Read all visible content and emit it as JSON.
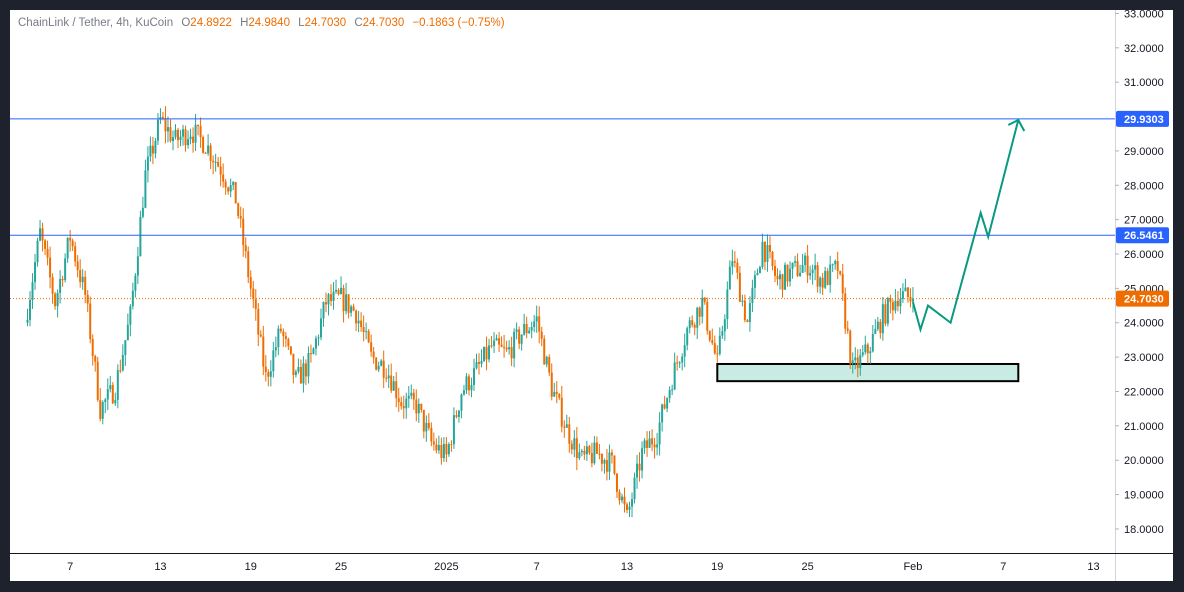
{
  "legend": {
    "symbol": "ChainLink / Tether, 4h, KuCoin",
    "o_label": "O",
    "o_value": "24.8922",
    "h_label": "H",
    "h_value": "24.9840",
    "l_label": "L",
    "l_value": "24.7030",
    "c_label": "C",
    "c_value": "24.7030",
    "change": "−0.1863 (−0.75%)"
  },
  "colors": {
    "up": "#26a69a",
    "down": "#ef6c00",
    "level_line": "#2962ff",
    "current_price": "#ef6c00",
    "zone_fill": "#c8ece4",
    "zone_border": "#000000",
    "projection": "#089981",
    "axis_text": "#131722"
  },
  "chart_data": {
    "type": "candlestick",
    "symbol": "ChainLink / Tether",
    "timeframe": "4h",
    "exchange": "KuCoin",
    "ylim": [
      17.3,
      33.1
    ],
    "y_ticks": [
      "18.0000",
      "19.0000",
      "20.0000",
      "21.0000",
      "22.0000",
      "23.0000",
      "24.0000",
      "25.0000",
      "26.0000",
      "27.0000",
      "28.0000",
      "29.0000",
      "30.0000",
      "31.0000",
      "32.0000",
      "33.0000"
    ],
    "x_ticks": [
      "7",
      "13",
      "19",
      "25",
      "2025",
      "7",
      "13",
      "19",
      "25",
      "Feb",
      "7",
      "13"
    ],
    "price_path": [
      [
        "Dec 4",
        24.0
      ],
      [
        "Dec 5",
        26.6
      ],
      [
        "Dec 6",
        24.6
      ],
      [
        "Dec 7",
        26.5
      ],
      [
        "Dec 8",
        24.8
      ],
      [
        "Dec 9",
        21.5
      ],
      [
        "Dec 10",
        22.1
      ],
      [
        "Dec 11",
        24.2
      ],
      [
        "Dec 12",
        28.3
      ],
      [
        "Dec 13",
        29.9
      ],
      [
        "Dec 14",
        29.3
      ],
      [
        "Dec 15",
        29.6
      ],
      [
        "Dec 16",
        29.2
      ],
      [
        "Dec 17",
        28.5
      ],
      [
        "Dec 18",
        27.6
      ],
      [
        "Dec 19",
        25.0
      ],
      [
        "Dec 20",
        22.4
      ],
      [
        "Dec 21",
        23.8
      ],
      [
        "Dec 22",
        22.3
      ],
      [
        "Dec 23",
        22.9
      ],
      [
        "Dec 24",
        24.6
      ],
      [
        "Dec 25",
        24.7
      ],
      [
        "Dec 26",
        24.3
      ],
      [
        "Dec 27",
        23.0
      ],
      [
        "Dec 28",
        22.7
      ],
      [
        "Dec 29",
        21.7
      ],
      [
        "Dec 30",
        21.6
      ],
      [
        "Dec 31",
        20.5
      ],
      [
        "Jan 1",
        20.1
      ],
      [
        "Jan 2",
        22.0
      ],
      [
        "Jan 3",
        22.6
      ],
      [
        "Jan 4",
        23.3
      ],
      [
        "Jan 5",
        23.1
      ],
      [
        "Jan 6",
        23.7
      ],
      [
        "Jan 7",
        24.1
      ],
      [
        "Jan 8",
        22.1
      ],
      [
        "Jan 9",
        20.9
      ],
      [
        "Jan 10",
        20.0
      ],
      [
        "Jan 11",
        20.2
      ],
      [
        "Jan 12",
        19.9
      ],
      [
        "Jan 13",
        18.3
      ],
      [
        "Jan 14",
        20.2
      ],
      [
        "Jan 15",
        20.8
      ],
      [
        "Jan 16",
        22.4
      ],
      [
        "Jan 17",
        23.8
      ],
      [
        "Jan 18",
        24.6
      ],
      [
        "Jan 19",
        22.8
      ],
      [
        "Jan 20",
        25.9
      ],
      [
        "Jan 21",
        24.0
      ],
      [
        "Jan 22",
        26.3
      ],
      [
        "Jan 23",
        25.2
      ],
      [
        "Jan 24",
        25.5
      ],
      [
        "Jan 25",
        25.7
      ],
      [
        "Jan 26",
        25.2
      ],
      [
        "Jan 27",
        25.6
      ],
      [
        "Jan 28",
        22.6
      ],
      [
        "Jan 29",
        23.2
      ],
      [
        "Jan 30",
        24.2
      ],
      [
        "Jan 31",
        24.8
      ],
      [
        "Feb 1",
        24.703
      ]
    ],
    "horizontal_levels": [
      29.9303,
      26.5461
    ],
    "current_price": 24.703,
    "price_labels": [
      "29.9303",
      "26.5461",
      "24.7030"
    ],
    "support_zone": {
      "from": "Jan 19",
      "to": "Feb 8",
      "low": 22.3,
      "high": 22.8
    },
    "projection_path": [
      [
        "Feb 1",
        24.6
      ],
      [
        "Feb 1.5",
        23.8
      ],
      [
        "Feb 2",
        24.5
      ],
      [
        "Feb 3.5",
        24.0
      ],
      [
        "Feb 5.5",
        27.2
      ],
      [
        "Feb 6",
        26.5
      ],
      [
        "Feb 8",
        29.9
      ]
    ]
  }
}
